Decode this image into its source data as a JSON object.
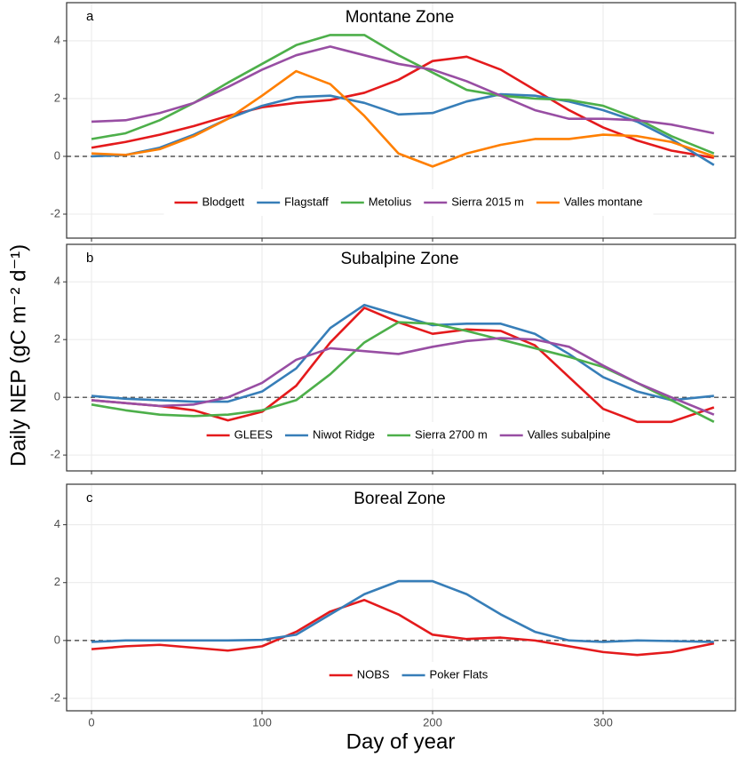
{
  "chart_data": [
    {
      "type": "line",
      "title": "Montane Zone",
      "panel": "a",
      "ylabel": "Daily NEP (gC m⁻² d⁻¹)",
      "x": [
        0,
        20,
        40,
        60,
        80,
        100,
        120,
        140,
        160,
        180,
        200,
        220,
        240,
        260,
        280,
        300,
        320,
        340,
        365
      ],
      "series": [
        {
          "name": "Blodgett",
          "color": "#e41a1c",
          "values": [
            0.3,
            0.5,
            0.75,
            1.05,
            1.4,
            1.7,
            1.85,
            1.95,
            2.2,
            2.65,
            3.3,
            3.45,
            3.0,
            2.3,
            1.6,
            1.0,
            0.55,
            0.2,
            -0.05
          ]
        },
        {
          "name": "Flagstaff",
          "color": "#377eb8",
          "values": [
            0,
            0.05,
            0.3,
            0.75,
            1.3,
            1.75,
            2.05,
            2.1,
            1.85,
            1.45,
            1.5,
            1.9,
            2.15,
            2.1,
            1.9,
            1.6,
            1.2,
            0.6,
            -0.3
          ]
        },
        {
          "name": "Metolius",
          "color": "#4daf4a",
          "values": [
            0.6,
            0.8,
            1.25,
            1.85,
            2.55,
            3.2,
            3.85,
            4.2,
            4.2,
            3.5,
            2.9,
            2.3,
            2.1,
            2.0,
            1.95,
            1.75,
            1.3,
            0.7,
            0.1
          ]
        },
        {
          "name": "Sierra 2015 m",
          "color": "#984ea3",
          "values": [
            1.2,
            1.25,
            1.5,
            1.85,
            2.4,
            3.0,
            3.5,
            3.8,
            3.5,
            3.2,
            3.0,
            2.6,
            2.1,
            1.6,
            1.3,
            1.3,
            1.25,
            1.1,
            0.8
          ]
        },
        {
          "name": "Valles montane",
          "color": "#ff7f00",
          "values": [
            0.1,
            0.05,
            0.25,
            0.7,
            1.3,
            2.1,
            2.95,
            2.5,
            1.4,
            0.1,
            -0.35,
            0.1,
            0.4,
            0.6,
            0.6,
            0.75,
            0.7,
            0.5,
            0
          ]
        }
      ],
      "xlim": [
        -14.6,
        377.6
      ],
      "xticks": [
        0,
        100,
        200,
        300
      ],
      "ylim": [
        -2.83,
        5.32
      ],
      "yticks": [
        -2,
        0,
        2,
        4
      ],
      "hline": 0,
      "grid": true
    },
    {
      "type": "line",
      "title": "Subalpine Zone",
      "panel": "b",
      "x": [
        0,
        20,
        40,
        60,
        80,
        100,
        120,
        140,
        160,
        180,
        200,
        220,
        240,
        260,
        280,
        300,
        320,
        340,
        365
      ],
      "series": [
        {
          "name": "GLEES",
          "color": "#e41a1c",
          "values": [
            -0.1,
            -0.2,
            -0.3,
            -0.45,
            -0.8,
            -0.5,
            0.4,
            1.9,
            3.1,
            2.6,
            2.2,
            2.35,
            2.3,
            1.8,
            0.7,
            -0.4,
            -0.85,
            -0.85,
            -0.35
          ]
        },
        {
          "name": "Niwot Ridge",
          "color": "#377eb8",
          "values": [
            0.05,
            -0.05,
            -0.1,
            -0.15,
            -0.15,
            0.2,
            1.0,
            2.4,
            3.2,
            2.85,
            2.5,
            2.55,
            2.55,
            2.2,
            1.5,
            0.7,
            0.2,
            -0.1,
            0.05
          ]
        },
        {
          "name": "Sierra 2700 m",
          "color": "#4daf4a",
          "values": [
            -0.25,
            -0.45,
            -0.6,
            -0.65,
            -0.6,
            -0.45,
            -0.1,
            0.8,
            1.9,
            2.6,
            2.55,
            2.3,
            2.0,
            1.7,
            1.4,
            1.05,
            0.5,
            -0.1,
            -0.85
          ]
        },
        {
          "name": "Valles subalpine",
          "color": "#984ea3",
          "values": [
            -0.1,
            -0.2,
            -0.3,
            -0.25,
            0.0,
            0.5,
            1.3,
            1.7,
            1.6,
            1.5,
            1.75,
            1.95,
            2.05,
            2.0,
            1.75,
            1.1,
            0.5,
            0.0,
            -0.6
          ]
        }
      ],
      "xlim": [
        -14.6,
        377.6
      ],
      "xticks": [
        0,
        100,
        200,
        300
      ],
      "ylim": [
        -2.55,
        5.3
      ],
      "yticks": [
        -2,
        0,
        2,
        4
      ],
      "hline": 0,
      "grid": true
    },
    {
      "type": "line",
      "title": "Boreal Zone",
      "panel": "c",
      "xlabel": "Day of year",
      "x": [
        0,
        20,
        40,
        60,
        80,
        100,
        120,
        140,
        160,
        180,
        200,
        220,
        240,
        260,
        280,
        300,
        320,
        340,
        365
      ],
      "series": [
        {
          "name": "NOBS",
          "color": "#e41a1c",
          "values": [
            -0.3,
            -0.2,
            -0.15,
            -0.25,
            -0.35,
            -0.2,
            0.3,
            1.0,
            1.4,
            0.9,
            0.2,
            0.05,
            0.1,
            0.0,
            -0.2,
            -0.4,
            -0.5,
            -0.4,
            -0.1
          ]
        },
        {
          "name": "Poker Flats",
          "color": "#377eb8",
          "values": [
            -0.05,
            0,
            0,
            0,
            0,
            0.02,
            0.2,
            0.9,
            1.6,
            2.05,
            2.05,
            1.6,
            0.9,
            0.3,
            0.0,
            -0.05,
            0,
            -0.02,
            -0.05
          ]
        }
      ],
      "xlim": [
        -14.6,
        377.6
      ],
      "xticks": [
        0,
        100,
        200,
        300
      ],
      "ylim": [
        -2.43,
        5.4
      ],
      "yticks": [
        -2,
        0,
        2,
        4
      ],
      "hline": 0,
      "grid": true
    }
  ]
}
